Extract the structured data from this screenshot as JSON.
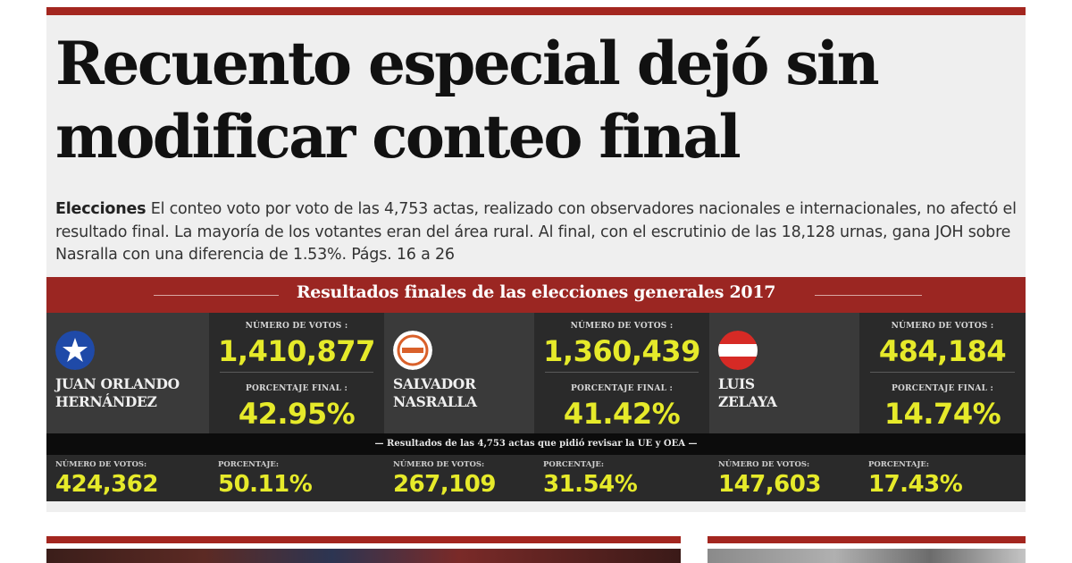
{
  "headline": "Recuento especial dejó sin modificar conteo final",
  "lead": {
    "kicker": "Elecciones",
    "text": "El conteo voto por voto de las 4,753 actas, realizado con observadores nacionales e internacionales, no afectó el resultado final. La mayoría de los votantes eran del área rural. Al final, con el escrutinio de las 18,128 urnas, gana JOH sobre Nasralla con una diferencia de 1.53%. Págs. 16 a 26"
  },
  "results": {
    "title": "Resultados finales de las elecciones generales 2017",
    "votes_label": "NÚMERO DE VOTOS :",
    "percent_label": "PORCENTAJE FINAL :",
    "candidates": [
      {
        "name_line1": "JUAN ORLANDO",
        "name_line2": "HERNÁNDEZ",
        "votes": "1,410,877",
        "percent": "42.95%"
      },
      {
        "name_line1": "SALVADOR",
        "name_line2": "NASRALLA",
        "votes": "1,360,439",
        "percent": "41.42%"
      },
      {
        "name_line1": "LUIS",
        "name_line2": "ZELAYA",
        "votes": "484,184",
        "percent": "14.74%"
      }
    ]
  },
  "recount": {
    "title": "Resultados de las 4,753 actas que pidió revisar la UE y OEA",
    "votes_label": "NÚMERO DE VOTOS:",
    "percent_label": "PORCENTAJE:",
    "items": [
      {
        "votes": "424,362",
        "percent": "50.11%"
      },
      {
        "votes": "267,109",
        "percent": "31.54%"
      },
      {
        "votes": "147,603",
        "percent": "17.43%"
      }
    ]
  },
  "colors": {
    "accent_red": "#a3261f",
    "value_yellow": "#e6ea2a"
  },
  "icons": [
    "national-party-star-logo",
    "alianza-logo",
    "libre-flag-logo"
  ]
}
